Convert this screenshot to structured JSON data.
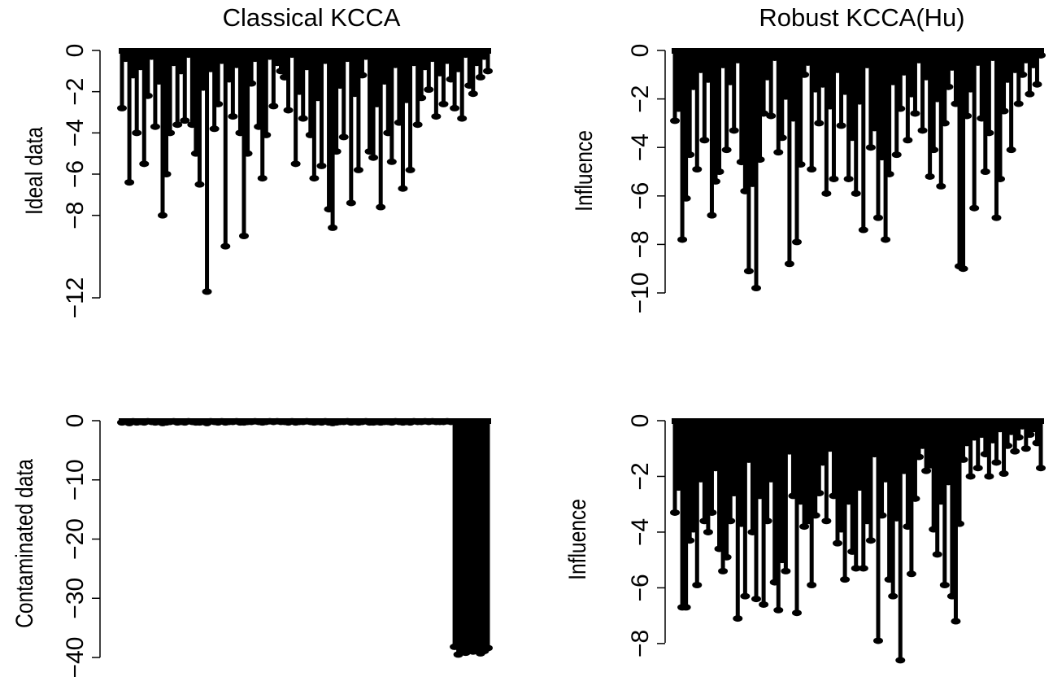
{
  "chart_data": [
    {
      "type": "bar",
      "title": "Classical KCCA",
      "xlabel": "",
      "ylabel": "Ideal data",
      "ylim": [
        -12,
        0
      ],
      "yticks": [
        0,
        -2,
        -4,
        -6,
        -8,
        -12
      ],
      "ytick_labels": [
        "0",
        "−2",
        "−4",
        "−6",
        "−8",
        "−12"
      ],
      "mark_color": "#000000",
      "x": [
        1,
        2,
        3,
        4,
        5,
        6,
        7,
        8,
        9,
        10,
        11,
        12,
        13,
        14,
        15,
        16,
        17,
        18,
        19,
        20,
        21,
        22,
        23,
        24,
        25,
        26,
        27,
        28,
        29,
        30,
        31,
        32,
        33,
        34,
        35,
        36,
        37,
        38,
        39,
        40,
        41,
        42,
        43,
        44,
        45,
        46,
        47,
        48,
        49,
        50,
        51,
        52,
        53,
        54,
        55,
        56,
        57,
        58,
        59,
        60,
        61,
        62,
        63,
        64,
        65,
        66,
        67,
        68,
        69,
        70,
        71,
        72,
        73,
        74,
        75,
        76,
        77,
        78,
        79,
        80,
        81,
        82,
        83,
        84,
        85,
        86,
        87,
        88,
        89,
        90,
        91,
        92,
        93,
        94,
        95,
        96,
        97,
        98,
        99,
        100
      ],
      "values": [
        -2.8,
        -0.4,
        -6.4,
        -1.2,
        -4.0,
        -0.8,
        -5.5,
        -2.2,
        -0.3,
        -3.7,
        -1.5,
        -8.0,
        -6.0,
        -4.0,
        -0.6,
        -3.6,
        -1.0,
        -3.4,
        -0.2,
        -3.6,
        -5.0,
        -6.5,
        -1.8,
        -11.7,
        -0.9,
        -3.8,
        -2.6,
        -0.5,
        -9.5,
        -1.4,
        -3.2,
        -0.7,
        -4.0,
        -9.0,
        -5.0,
        -1.6,
        -0.4,
        -3.7,
        -6.2,
        -4.1,
        -0.3,
        -2.7,
        -0.6,
        -1.0,
        -1.3,
        -2.9,
        -0.2,
        -5.5,
        -2.0,
        -3.3,
        -0.8,
        -4.1,
        -6.2,
        -2.3,
        -5.6,
        -0.5,
        -7.7,
        -8.6,
        -4.9,
        -1.7,
        -4.2,
        -0.4,
        -7.4,
        -2.1,
        -5.8,
        -1.2,
        -0.3,
        -4.9,
        -5.2,
        -2.6,
        -7.6,
        -1.5,
        -4.0,
        -5.4,
        -0.7,
        -3.5,
        -6.7,
        -2.4,
        -5.8,
        -0.6,
        -3.6,
        -2.3,
        -0.8,
        -1.9,
        -0.4,
        -3.2,
        -1.1,
        -2.6,
        -0.5,
        -1.4,
        -2.8,
        -0.9,
        -3.3,
        -0.2,
        -1.7,
        -2.1,
        -0.6,
        -1.3,
        -0.3,
        -1.0
      ]
    },
    {
      "type": "bar",
      "title": "Robust KCCA(Hu)",
      "xlabel": "",
      "ylabel": "Influence",
      "ylim": [
        -10,
        0
      ],
      "yticks": [
        0,
        -2,
        -4,
        -6,
        -8,
        -10
      ],
      "ytick_labels": [
        "0",
        "−2",
        "−4",
        "−6",
        "−8",
        "−10"
      ],
      "mark_color": "#000000",
      "x": [
        1,
        2,
        3,
        4,
        5,
        6,
        7,
        8,
        9,
        10,
        11,
        12,
        13,
        14,
        15,
        16,
        17,
        18,
        19,
        20,
        21,
        22,
        23,
        24,
        25,
        26,
        27,
        28,
        29,
        30,
        31,
        32,
        33,
        34,
        35,
        36,
        37,
        38,
        39,
        40,
        41,
        42,
        43,
        44,
        45,
        46,
        47,
        48,
        49,
        50,
        51,
        52,
        53,
        54,
        55,
        56,
        57,
        58,
        59,
        60,
        61,
        62,
        63,
        64,
        65,
        66,
        67,
        68,
        69,
        70,
        71,
        72,
        73,
        74,
        75,
        76,
        77,
        78,
        79,
        80,
        81,
        82,
        83,
        84,
        85,
        86,
        87,
        88,
        89,
        90,
        91,
        92,
        93,
        94,
        95,
        96,
        97,
        98,
        99,
        100
      ],
      "values": [
        -2.9,
        -2.4,
        -7.8,
        -6.1,
        -4.3,
        -1.5,
        -4.9,
        -0.8,
        -3.7,
        -1.2,
        -6.8,
        -5.4,
        -5.0,
        -0.6,
        -4.1,
        -1.3,
        -3.3,
        -0.4,
        -4.6,
        -5.8,
        -9.1,
        -5.5,
        -9.8,
        -4.5,
        -2.6,
        -1.1,
        -2.7,
        -0.3,
        -4.2,
        -3.6,
        -1.9,
        -8.8,
        -2.8,
        -7.9,
        -4.7,
        -1.0,
        -0.5,
        -4.9,
        -1.6,
        -3.0,
        -1.4,
        -5.9,
        -2.3,
        -5.3,
        -0.8,
        -3.1,
        -1.7,
        -5.3,
        -3.6,
        -5.9,
        -2.1,
        -7.4,
        -0.6,
        -4.0,
        -3.2,
        -6.9,
        -4.4,
        -7.8,
        -5.1,
        -1.3,
        -4.3,
        -2.4,
        -0.9,
        -3.7,
        -1.8,
        -2.6,
        -0.4,
        -3.3,
        -1.1,
        -5.2,
        -4.1,
        -2.0,
        -5.6,
        -3.0,
        -1.5,
        -0.7,
        -2.2,
        -8.9,
        -9.0,
        -2.7,
        -1.6,
        -6.5,
        -0.5,
        -2.8,
        -5.0,
        -3.4,
        -0.3,
        -6.9,
        -5.3,
        -2.5,
        -1.2,
        -4.1,
        -0.8,
        -2.2,
        -1.0,
        -0.4,
        -1.8,
        -0.6,
        -1.4,
        -0.2
      ]
    },
    {
      "type": "bar",
      "title": "",
      "xlabel": "",
      "ylabel": "Contaminated data",
      "ylim": [
        -40,
        0
      ],
      "yticks": [
        0,
        -10,
        -20,
        -30,
        -40
      ],
      "ytick_labels": [
        "0",
        "−10",
        "−20",
        "−30",
        "−40"
      ],
      "mark_color": "#000000",
      "x": [
        1,
        2,
        3,
        4,
        5,
        6,
        7,
        8,
        9,
        10,
        11,
        12,
        13,
        14,
        15,
        16,
        17,
        18,
        19,
        20,
        21,
        22,
        23,
        24,
        25,
        26,
        27,
        28,
        29,
        30,
        31,
        32,
        33,
        34,
        35,
        36,
        37,
        38,
        39,
        40,
        41,
        42,
        43,
        44,
        45,
        46,
        47,
        48,
        49,
        50,
        51,
        52,
        53,
        54,
        55,
        56,
        57,
        58,
        59,
        60,
        61,
        62,
        63,
        64,
        65,
        66,
        67,
        68,
        69,
        70,
        71,
        72,
        73,
        74,
        75,
        76,
        77,
        78,
        79,
        80,
        81,
        82,
        83,
        84,
        85,
        86,
        87,
        88,
        89,
        90,
        91,
        92,
        93,
        94,
        95,
        96,
        97,
        98,
        99,
        100
      ],
      "values": [
        -0.3,
        -0.2,
        -0.4,
        -0.1,
        -0.3,
        -0.2,
        -0.3,
        -0.1,
        -0.2,
        -0.3,
        -0.2,
        -0.4,
        -0.3,
        -0.2,
        -0.1,
        -0.3,
        -0.2,
        -0.3,
        -0.1,
        -0.2,
        -0.3,
        -0.3,
        -0.2,
        -0.4,
        -0.1,
        -0.2,
        -0.3,
        -0.1,
        -0.3,
        -0.2,
        -0.2,
        -0.1,
        -0.3,
        -0.3,
        -0.2,
        -0.2,
        -0.1,
        -0.2,
        -0.3,
        -0.2,
        -0.1,
        -0.2,
        -0.1,
        -0.2,
        -0.2,
        -0.3,
        -0.1,
        -0.3,
        -0.2,
        -0.2,
        -0.1,
        -0.2,
        -0.3,
        -0.2,
        -0.3,
        -0.1,
        -0.3,
        -0.4,
        -0.3,
        -0.2,
        -0.2,
        -0.1,
        -0.3,
        -0.2,
        -0.3,
        -0.2,
        -0.1,
        -0.3,
        -0.3,
        -0.2,
        -0.3,
        -0.2,
        -0.2,
        -0.3,
        -0.1,
        -0.2,
        -0.3,
        -0.2,
        -0.3,
        -0.1,
        -0.2,
        -0.2,
        -0.1,
        -0.2,
        -0.1,
        -0.2,
        -0.2,
        -0.2,
        -0.1,
        -0.2,
        -38.2,
        -39.5,
        -38.8,
        -39.2,
        -38.5,
        -39.0,
        -38.6,
        -39.3,
        -38.9,
        -38.4
      ]
    },
    {
      "type": "bar",
      "title": "",
      "xlabel": "",
      "ylabel": "Influence",
      "ylim": [
        -8.5,
        0
      ],
      "yticks": [
        0,
        -2,
        -4,
        -6,
        -8
      ],
      "ytick_labels": [
        "0",
        "−2",
        "−4",
        "−6",
        "−8"
      ],
      "mark_color": "#000000",
      "x": [
        1,
        2,
        3,
        4,
        5,
        6,
        7,
        8,
        9,
        10,
        11,
        12,
        13,
        14,
        15,
        16,
        17,
        18,
        19,
        20,
        21,
        22,
        23,
        24,
        25,
        26,
        27,
        28,
        29,
        30,
        31,
        32,
        33,
        34,
        35,
        36,
        37,
        38,
        39,
        40,
        41,
        42,
        43,
        44,
        45,
        46,
        47,
        48,
        49,
        50,
        51,
        52,
        53,
        54,
        55,
        56,
        57,
        58,
        59,
        60,
        61,
        62,
        63,
        64,
        65,
        66,
        67,
        68,
        69,
        70,
        71,
        72,
        73,
        74,
        75,
        76,
        77,
        78,
        79,
        80,
        81,
        82,
        83,
        84,
        85,
        86,
        87,
        88,
        89,
        90,
        91,
        92,
        93,
        94,
        95,
        96,
        97,
        98,
        99,
        100
      ],
      "values": [
        -3.3,
        -2.4,
        -6.7,
        -6.7,
        -4.3,
        -3.9,
        -5.9,
        -2.1,
        -3.6,
        -4.0,
        -3.3,
        -1.7,
        -4.6,
        -5.4,
        -4.9,
        -3.6,
        -2.6,
        -7.1,
        -3.7,
        -6.3,
        -1.4,
        -4.0,
        -6.4,
        -2.7,
        -6.6,
        -3.6,
        -2.1,
        -5.8,
        -6.8,
        -5.0,
        -5.4,
        -1.1,
        -2.7,
        -6.9,
        -2.9,
        -3.8,
        -3.6,
        -5.9,
        -3.4,
        -2.6,
        -1.5,
        -3.6,
        -1.0,
        -2.7,
        -4.4,
        -3.9,
        -5.7,
        -2.9,
        -4.7,
        -5.3,
        -2.4,
        -5.3,
        -3.6,
        -4.3,
        -1.2,
        -7.9,
        -3.4,
        -2.1,
        -5.7,
        -6.3,
        -3.5,
        -8.6,
        -1.8,
        -3.8,
        -5.5,
        -2.8,
        -1.3,
        -0.9,
        -1.8,
        -1.6,
        -3.9,
        -4.8,
        -2.9,
        -5.9,
        -2.2,
        -6.3,
        -7.2,
        -3.7,
        -1.4,
        -0.8,
        -2.0,
        -0.6,
        -1.7,
        -0.5,
        -1.2,
        -2.0,
        -0.7,
        -1.5,
        -0.3,
        -1.9,
        -0.9,
        -0.4,
        -1.1,
        -0.6,
        -0.2,
        -1.0,
        -0.5,
        -0.3,
        -0.8,
        -1.7
      ]
    }
  ]
}
